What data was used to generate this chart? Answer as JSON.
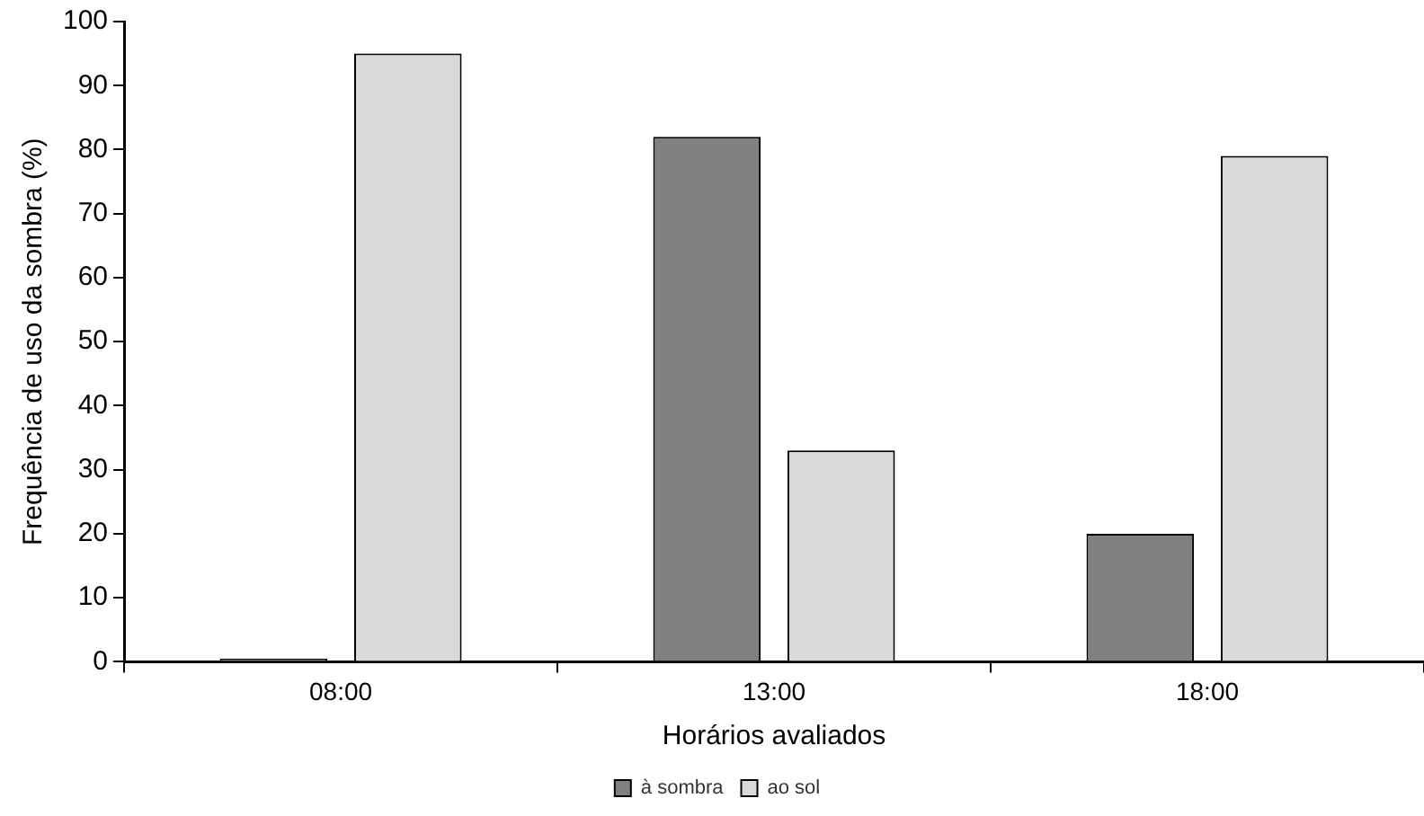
{
  "chart_data": {
    "type": "bar",
    "xlabel": "Horários avaliados",
    "ylabel": "Frequência de uso da sombra (%)",
    "categories": [
      "08:00",
      "13:00",
      "18:00"
    ],
    "series": [
      {
        "name": "à sombra",
        "color": "#808080",
        "values": [
          0.5,
          82,
          20
        ]
      },
      {
        "name": "ao sol",
        "color": "#d9d9d9",
        "values": [
          95,
          33,
          79
        ]
      }
    ],
    "ylim": [
      0,
      100
    ],
    "yticks": [
      0,
      10,
      20,
      30,
      40,
      50,
      60,
      70,
      80,
      90,
      100
    ],
    "grid": false,
    "legend": "bottom"
  }
}
